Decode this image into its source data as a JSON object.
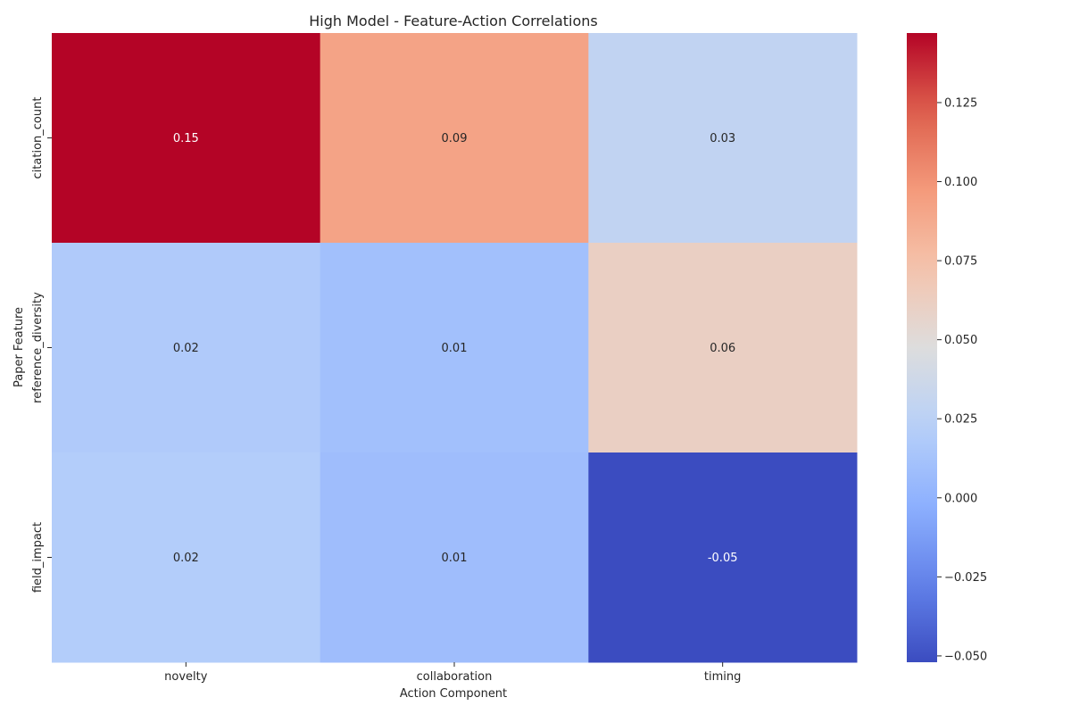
{
  "chart_data": {
    "type": "heatmap",
    "title": "High Model - Feature-Action Correlations",
    "xlabel": "Action Component",
    "ylabel": "Paper Feature",
    "x_categories": [
      "novelty",
      "collaboration",
      "timing"
    ],
    "y_categories": [
      "citation_count",
      "reference_diversity",
      "field_impact"
    ],
    "values": [
      [
        0.147,
        0.092,
        0.029
      ],
      [
        0.018,
        0.01,
        0.061
      ],
      [
        0.02,
        0.008,
        -0.052
      ]
    ],
    "annotations": [
      [
        "0.15",
        "0.09",
        "0.03"
      ],
      [
        "0.02",
        "0.01",
        "0.06"
      ],
      [
        "0.02",
        "0.01",
        "-0.05"
      ]
    ],
    "colormap": "coolwarm",
    "vmin": -0.052,
    "vmax": 0.147,
    "colorbar_ticks": [
      0.125,
      0.1,
      0.075,
      0.05,
      0.025,
      0.0,
      -0.025,
      -0.05
    ],
    "colorbar_tick_labels": [
      "0.125",
      "0.100",
      "0.075",
      "0.050",
      "0.025",
      "0.000",
      "−0.025",
      "−0.050"
    ],
    "colorbar_position": "right",
    "grid": false
  }
}
